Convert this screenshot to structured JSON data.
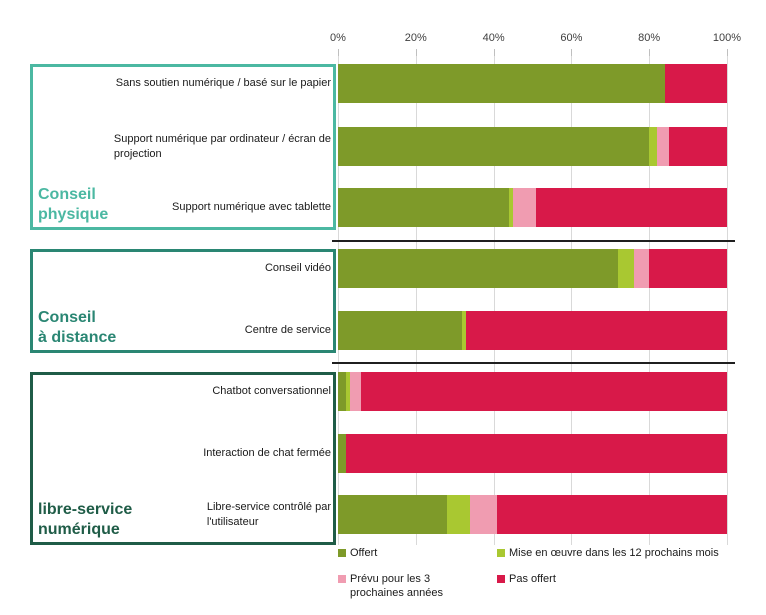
{
  "colors": {
    "offert": "#7E9A29",
    "mise_en_oeuvre": "#A9C831",
    "prevu": "#F09CB1",
    "pas_offert": "#D81949",
    "group_conseil_physique_accent": "#4BB8A2",
    "group_conseil_a_distance_accent": "#2A8673",
    "group_libre_service_accent": "#1F5C47",
    "gridline": "#d9d9d9",
    "axis_text": "#404040",
    "separator": "#1f1f1f"
  },
  "legend": {
    "items": [
      {
        "label": "Offert",
        "color": "#7E9A29"
      },
      {
        "label": "Mise en œuvre dans les 12 prochains mois",
        "color": "#A9C831"
      },
      {
        "label": "Prévu pour les 3\nprochaines années",
        "color": "#F09CB1"
      },
      {
        "label": "Pas offert",
        "color": "#D81949"
      }
    ]
  },
  "chart_data": {
    "type": "bar",
    "orientation": "horizontal",
    "stacked": true,
    "title": "",
    "x_axis": {
      "ticks": [
        "0%",
        "20%",
        "40%",
        "60%",
        "80%",
        "100%"
      ],
      "percents": [
        0,
        20,
        40,
        60,
        80,
        100
      ],
      "range": [
        0,
        100
      ],
      "unit": "percent",
      "grid": true
    },
    "series_names": [
      "Offert",
      "Mise en œuvre dans les 12 prochains mois",
      "Prévu pour les 3 prochaines années",
      "Pas offert"
    ],
    "series_colors": [
      "#7E9A29",
      "#A9C831",
      "#F09CB1",
      "#D81949"
    ],
    "legend_position": "bottom",
    "groups": [
      {
        "label": "Conseil\nphysique",
        "accent_color": "#4BB8A2",
        "rows": [
          {
            "label": "Sans soutien numérique / basé sur le papier",
            "values": [
              84,
              0,
              0,
              16
            ]
          },
          {
            "label": "Support numérique par ordinateur / écran de\nprojection",
            "values": [
              80,
              2,
              3,
              15
            ]
          },
          {
            "label": "Support numérique avec tablette",
            "values": [
              44,
              1,
              6,
              49
            ]
          }
        ]
      },
      {
        "label": "Conseil\nà distance",
        "accent_color": "#2A8673",
        "rows": [
          {
            "label": "Conseil vidéo",
            "values": [
              72,
              4,
              4,
              20
            ]
          },
          {
            "label": "Centre de service",
            "values": [
              32,
              1,
              0,
              67
            ]
          }
        ]
      },
      {
        "label": "libre-service\nnumérique",
        "accent_color": "#1F5C47",
        "rows": [
          {
            "label": "Chatbot conversationnel",
            "values": [
              2,
              1,
              3,
              94
            ]
          },
          {
            "label": "Interaction de chat fermée",
            "values": [
              2,
              0,
              0,
              98
            ]
          },
          {
            "label": "Libre-service contrôlé par\nl'utilisateur",
            "values": [
              28,
              6,
              7,
              59
            ]
          }
        ]
      }
    ]
  }
}
